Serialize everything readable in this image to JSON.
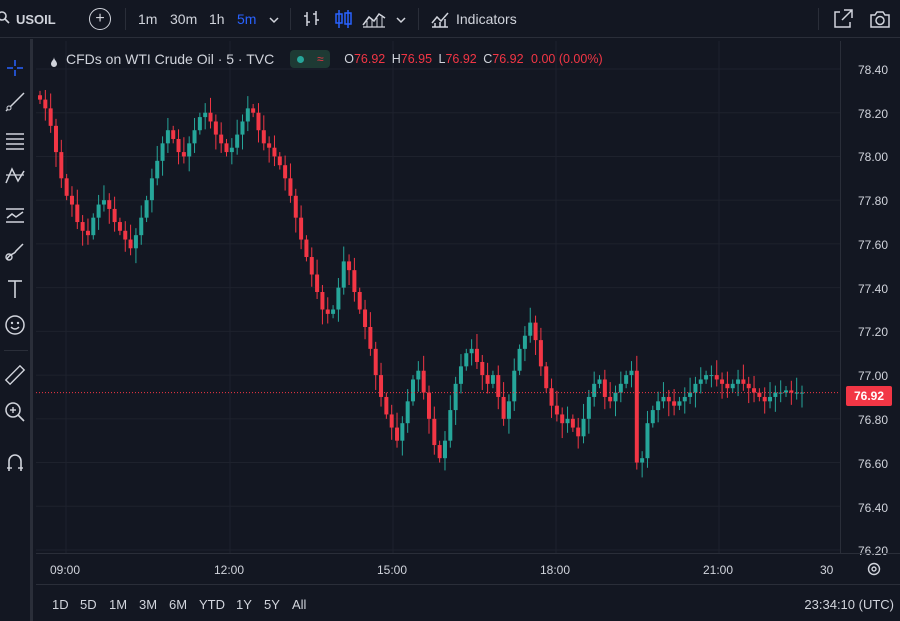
{
  "toolbar": {
    "symbol": "USOIL",
    "intervals": [
      "1m",
      "30m",
      "1h",
      "5m"
    ],
    "active_interval": "5m",
    "indicators_label": "Indicators"
  },
  "legend": {
    "title": "CFDs on WTI Crude Oil · 5 · TVC",
    "o_label": "O",
    "o_value": "76.92",
    "h_label": "H",
    "h_value": "76.95",
    "l_label": "L",
    "l_value": "76.92",
    "c_label": "C",
    "c_value": "76.92",
    "change": "0.00 (0.00%)"
  },
  "price_axis": {
    "ticks": [
      "78.40",
      "78.20",
      "78.00",
      "77.80",
      "77.60",
      "77.40",
      "77.20",
      "77.00",
      "76.80",
      "76.60",
      "76.40",
      "76.20"
    ],
    "last_price": "76.92"
  },
  "time_axis": {
    "ticks": [
      "09:00",
      "12:00",
      "15:00",
      "18:00",
      "21:00",
      "30"
    ]
  },
  "bottom": {
    "ranges": [
      "1D",
      "5D",
      "1M",
      "3M",
      "6M",
      "YTD",
      "1Y",
      "5Y",
      "All"
    ],
    "clock": "23:34:10 (UTC)"
  },
  "colors": {
    "up": "#26a69a",
    "down": "#f23645",
    "background": "#131722",
    "accent": "#2962ff"
  },
  "chart_data": {
    "type": "candlestick",
    "title": "CFDs on WTI Crude Oil · 5 · TVC",
    "ylim": [
      76.2,
      78.45
    ],
    "x_ticks": [
      "09:00",
      "12:00",
      "15:00",
      "18:00",
      "21:00"
    ],
    "closes": [
      78.26,
      78.22,
      78.14,
      78.02,
      77.9,
      77.82,
      77.78,
      77.7,
      77.66,
      77.64,
      77.72,
      77.78,
      77.8,
      77.76,
      77.7,
      77.66,
      77.62,
      77.58,
      77.64,
      77.72,
      77.8,
      77.9,
      77.98,
      78.06,
      78.12,
      78.08,
      78.02,
      78.0,
      78.06,
      78.12,
      78.18,
      78.2,
      78.16,
      78.1,
      78.06,
      78.02,
      78.04,
      78.1,
      78.16,
      78.22,
      78.2,
      78.12,
      78.06,
      78.04,
      78.0,
      77.96,
      77.9,
      77.82,
      77.72,
      77.62,
      77.54,
      77.46,
      77.38,
      77.3,
      77.28,
      77.3,
      77.4,
      77.52,
      77.48,
      77.38,
      77.3,
      77.22,
      77.12,
      77.0,
      76.9,
      76.82,
      76.76,
      76.7,
      76.78,
      76.88,
      76.98,
      77.02,
      76.92,
      76.8,
      76.68,
      76.62,
      76.7,
      76.84,
      76.96,
      77.04,
      77.1,
      77.12,
      77.06,
      77.0,
      76.96,
      77.0,
      76.9,
      76.8,
      76.88,
      77.02,
      77.12,
      77.18,
      77.24,
      77.16,
      77.04,
      76.94,
      76.86,
      76.82,
      76.78,
      76.8,
      76.76,
      76.72,
      76.8,
      76.9,
      76.96,
      76.98,
      76.9,
      76.88,
      76.92,
      76.96,
      77.0,
      77.02,
      76.6,
      76.62,
      76.78,
      76.84,
      76.88,
      76.9,
      76.88,
      76.86,
      76.88,
      76.9,
      76.92,
      76.96,
      76.98,
      77.0,
      77.0,
      76.98,
      76.96,
      76.94,
      76.96,
      76.98,
      76.96,
      76.94,
      76.92,
      76.9,
      76.88,
      76.9,
      76.92,
      76.92,
      76.93,
      76.92,
      76.92,
      76.92
    ]
  }
}
